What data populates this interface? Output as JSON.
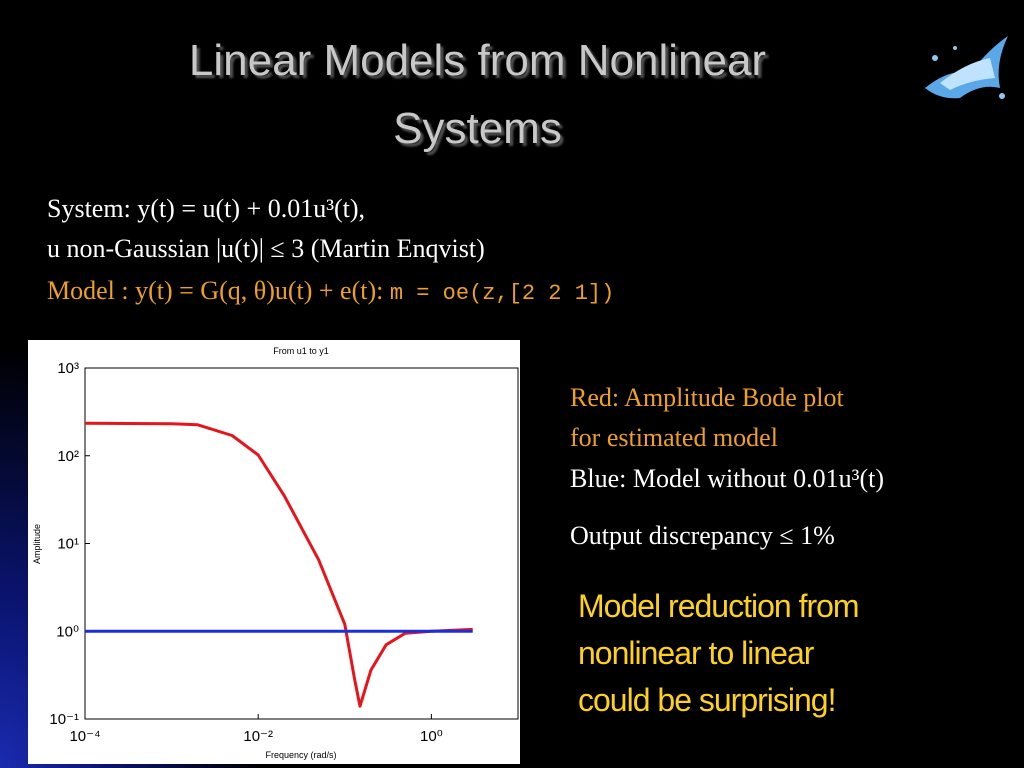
{
  "slide": {
    "title": [
      "Linear Models from Nonlinear",
      "Systems"
    ],
    "system_line": "System: y(t) = u(t) + 0.01u³(t),",
    "input_line": "u non-Gaussian |u(t)| ≤ 3 (Martin Enqvist)",
    "model_line": "Model : y(t) = G(q, θ)u(t) + e(t):",
    "model_code": "m = oe(z,[2 2 1])",
    "notes": [
      "Red: Amplitude Bode plot",
      "for estimated model",
      "Blue: Model without 0.01u³(t)",
      "Output discrepancy ≤ 1%"
    ],
    "conclusion": [
      "Model reduction from",
      "nonlinear to linear",
      "could be surprising!"
    ]
  },
  "chart_data": {
    "type": "line",
    "title": "From u1 to y1",
    "x_label": "Frequency (rad/s)",
    "y_label": "Amplitude",
    "log_x": true,
    "log_y": true,
    "x": [
      0.0001,
      0.001,
      0.002,
      0.005,
      0.01,
      0.02,
      0.05,
      0.1,
      0.13,
      0.15,
      0.2,
      0.3,
      0.5,
      1,
      3
    ],
    "series": [
      {
        "name": "Red",
        "color": "#e8141c",
        "values": [
          235,
          232,
          225,
          170,
          102,
          35,
          6.5,
          1.2,
          0.28,
          0.14,
          0.36,
          0.7,
          0.95,
          1.0,
          1.05
        ]
      },
      {
        "name": "Blue",
        "color": "#1a2ee0",
        "values": [
          1,
          1,
          1,
          1,
          1,
          1,
          1,
          1,
          1,
          1,
          1,
          1,
          1,
          1,
          1
        ]
      }
    ],
    "xlim": [
      0.0001,
      10
    ],
    "ylim": [
      0.1,
      1000
    ],
    "xticks": [
      {
        "value": 0.0001,
        "label": "10⁻⁴"
      },
      {
        "value": 0.01,
        "label": "10⁻²"
      },
      {
        "value": 1,
        "label": "10⁰"
      }
    ],
    "yticks": [
      {
        "value": 0.1,
        "label": "10⁻¹"
      },
      {
        "value": 1,
        "label": "10⁰"
      },
      {
        "value": 10,
        "label": "10¹"
      },
      {
        "value": 100,
        "label": "10²"
      },
      {
        "value": 1000,
        "label": "10³"
      }
    ]
  }
}
